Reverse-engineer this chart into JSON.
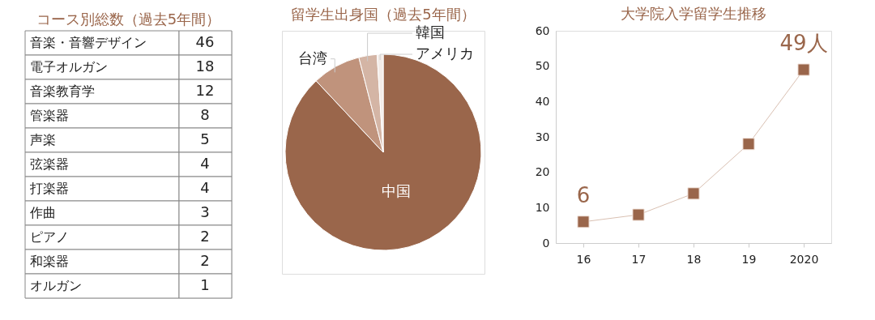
{
  "chart_data": [
    {
      "type": "other",
      "title": "コース別総数（過去5年間）",
      "categories": [
        "音楽・音響デザイン",
        "電子オルガン",
        "音楽教育学",
        "管楽器",
        "声楽",
        "弦楽器",
        "打楽器",
        "作曲",
        "ピアノ",
        "和楽器",
        "オルガン"
      ],
      "values": [
        46,
        18,
        12,
        8,
        5,
        4,
        4,
        3,
        2,
        2,
        1
      ],
      "data_labels": true
    },
    {
      "type": "pie",
      "title": "留学生出身国（過去5年間）",
      "categories": [
        "中国",
        "台湾",
        "韓国",
        "アメリカ"
      ],
      "values": [
        88,
        8,
        3,
        1
      ],
      "colors": [
        "#9a664b",
        "#c0937c",
        "#d4b5a5",
        "#f3ece8"
      ]
    },
    {
      "type": "line",
      "title": "大学院入学留学生推移",
      "categories": [
        "16",
        "17",
        "18",
        "19",
        "2020"
      ],
      "series": [
        {
          "color": "#9a664b",
          "values": [
            6,
            8,
            14,
            28,
            49
          ],
          "value_labels": [
            "6",
            null,
            null,
            null,
            "49人"
          ]
        }
      ],
      "ylim": [
        0,
        60
      ],
      "yticks": [
        0,
        10,
        20,
        30,
        40,
        50,
        60
      ],
      "grid": false,
      "marker": "square",
      "line_style": "solid"
    }
  ]
}
